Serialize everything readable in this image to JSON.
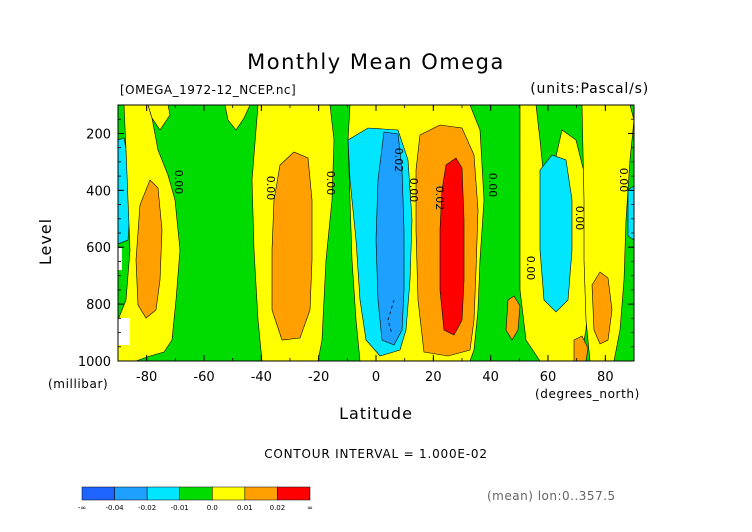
{
  "chart_data": {
    "type": "heatmap",
    "title": "Monthly Mean Omega",
    "subtitle_left": "[OMEGA_1972-12_NCEP.nc]",
    "subtitle_right": "(units:Pascal/s)",
    "xlabel": "Latitude",
    "xunits": "(degrees_north)",
    "ylabel": "Level",
    "yunits": "(millibar)",
    "xlim": [
      -90,
      90
    ],
    "ylim": [
      1000,
      100
    ],
    "x_ticks": [
      -80,
      -60,
      -40,
      -20,
      0,
      20,
      40,
      60,
      80
    ],
    "y_ticks": [
      200,
      400,
      600,
      800,
      1000
    ],
    "contour_interval_label": "CONTOUR INTERVAL = 1.000E-02",
    "contour_labels": [
      "0.00",
      "0.00",
      "0.00",
      "0.02",
      "0.00",
      "0.02",
      "0.00",
      "0.00",
      "0.00",
      "0.00"
    ],
    "footnote": "(mean) lon:0..357.5",
    "colorbar": {
      "labels": [
        "-∞",
        "-0.04",
        "-0.02",
        "-0.01",
        "0.0",
        "0.01",
        "0.02",
        "∞"
      ],
      "colors": [
        "#1e64ff",
        "#1ea0ff",
        "#00e6ff",
        "#00dc00",
        "#ffff00",
        "#ffa000",
        "#ff0000"
      ]
    },
    "colors": {
      "blue": "#1e64ff",
      "lightblue": "#1ea0ff",
      "cyan": "#00e6ff",
      "green": "#00dc00",
      "yellow": "#ffff00",
      "orange": "#ffa000",
      "red": "#ff0000"
    }
  }
}
